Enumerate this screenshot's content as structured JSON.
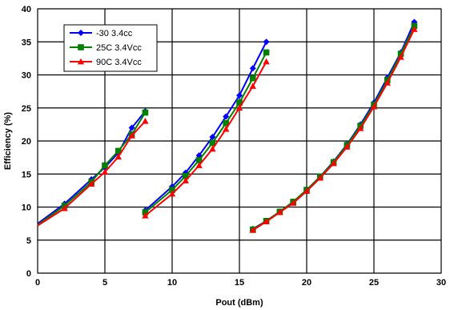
{
  "chart_data": {
    "type": "line",
    "title": "",
    "xlabel": "Pout (dBm)",
    "ylabel": "Efficiency (%)",
    "xlim": [
      0,
      30
    ],
    "ylim": [
      0,
      40
    ],
    "xticks": [
      0,
      5,
      10,
      15,
      20,
      25,
      30
    ],
    "yticks": [
      0,
      5,
      10,
      15,
      20,
      25,
      30,
      35,
      40
    ],
    "grid": true,
    "legend_position": "top-left",
    "series": [
      {
        "name": "-30 3.4cc",
        "color": "#0000ff",
        "marker": "diamond",
        "segments": [
          [
            [
              0,
              7.5
            ],
            [
              2,
              10.5
            ],
            [
              4,
              14.2
            ],
            [
              5,
              16.0
            ],
            [
              6,
              18.2
            ],
            [
              7,
              22.0
            ],
            [
              8,
              24.5
            ]
          ],
          [
            [
              8,
              9.5
            ],
            [
              10,
              13.1
            ],
            [
              11,
              15.2
            ],
            [
              12,
              17.8
            ],
            [
              13,
              20.6
            ],
            [
              14,
              23.7
            ],
            [
              15,
              26.9
            ],
            [
              16,
              31.0
            ],
            [
              17,
              35.0
            ]
          ],
          [
            [
              16,
              6.7
            ],
            [
              17,
              7.9
            ],
            [
              18,
              9.3
            ],
            [
              19,
              10.8
            ],
            [
              20,
              12.6
            ],
            [
              21,
              14.6
            ],
            [
              22,
              16.9
            ],
            [
              23,
              19.5
            ],
            [
              24,
              22.5
            ],
            [
              25,
              25.8
            ],
            [
              26,
              29.6
            ],
            [
              27,
              33.4
            ],
            [
              28,
              38.0
            ]
          ]
        ]
      },
      {
        "name": "25C 3.4Vcc",
        "color": "#008000",
        "marker": "square",
        "segments": [
          [
            [
              0,
              7.3
            ],
            [
              2,
              10.2
            ],
            [
              4,
              13.8
            ],
            [
              5,
              16.3
            ],
            [
              6,
              18.5
            ],
            [
              7,
              21.0
            ],
            [
              8,
              24.3
            ]
          ],
          [
            [
              8,
              9.2
            ],
            [
              10,
              12.6
            ],
            [
              11,
              14.7
            ],
            [
              12,
              17.1
            ],
            [
              13,
              19.7
            ],
            [
              14,
              22.7
            ],
            [
              15,
              25.8
            ],
            [
              16,
              29.5
            ],
            [
              17,
              33.4
            ]
          ],
          [
            [
              16,
              6.6
            ],
            [
              17,
              7.9
            ],
            [
              18,
              9.3
            ],
            [
              19,
              10.8
            ],
            [
              20,
              12.6
            ],
            [
              21,
              14.6
            ],
            [
              22,
              16.8
            ],
            [
              23,
              19.4
            ],
            [
              24,
              22.3
            ],
            [
              25,
              25.5
            ],
            [
              26,
              29.2
            ],
            [
              27,
              33.2
            ],
            [
              28,
              37.4
            ]
          ]
        ]
      },
      {
        "name": "90C 3.4Vcc",
        "color": "#ff0000",
        "marker": "triangle",
        "segments": [
          [
            [
              0,
              7.2
            ],
            [
              2,
              9.8
            ],
            [
              4,
              13.5
            ],
            [
              5,
              15.3
            ],
            [
              6,
              17.6
            ],
            [
              7,
              20.8
            ],
            [
              8,
              23.0
            ]
          ],
          [
            [
              8,
              8.7
            ],
            [
              10,
              12.0
            ],
            [
              11,
              14.0
            ],
            [
              12,
              16.3
            ],
            [
              13,
              18.8
            ],
            [
              14,
              21.8
            ],
            [
              15,
              25.0
            ],
            [
              16,
              28.3
            ],
            [
              17,
              32.0
            ]
          ],
          [
            [
              16,
              6.5
            ],
            [
              17,
              7.8
            ],
            [
              18,
              9.2
            ],
            [
              19,
              10.6
            ],
            [
              20,
              12.4
            ],
            [
              21,
              14.4
            ],
            [
              22,
              16.6
            ],
            [
              23,
              19.1
            ],
            [
              24,
              21.9
            ],
            [
              25,
              25.2
            ],
            [
              26,
              28.8
            ],
            [
              27,
              32.7
            ],
            [
              28,
              36.9
            ]
          ]
        ]
      }
    ]
  }
}
